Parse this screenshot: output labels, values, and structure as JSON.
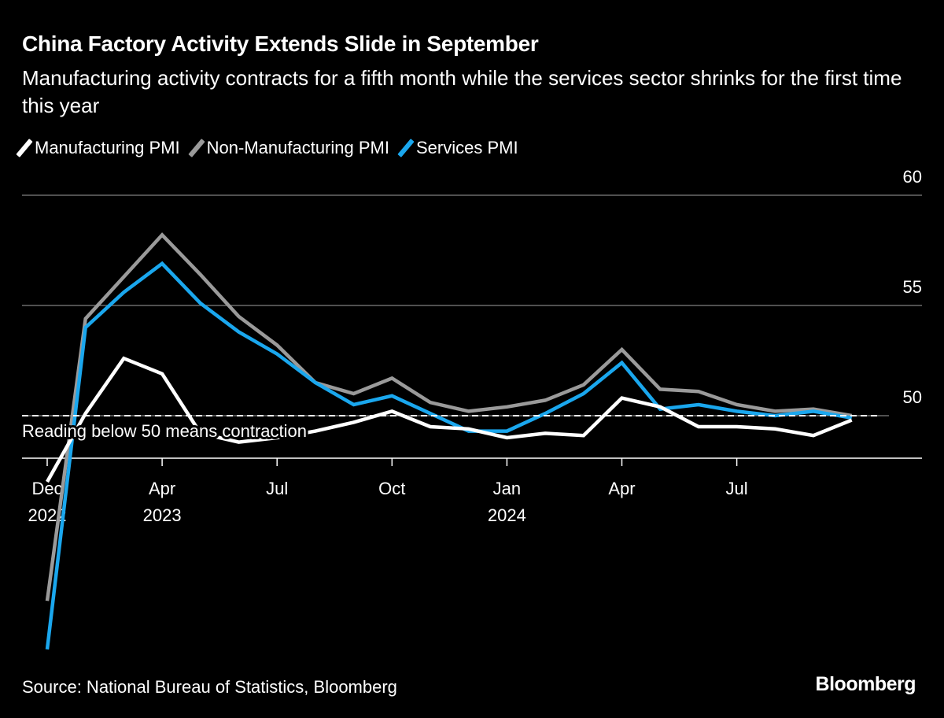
{
  "header": {
    "title": "China Factory Activity Extends Slide in September",
    "subtitle": "Manufacturing activity contracts for a fifth month while the services sector shrinks for the first time this year"
  },
  "footer": {
    "source": "Source: National Bureau of Statistics, Bloomberg",
    "logo": "Bloomberg"
  },
  "chart_data": {
    "type": "line",
    "title": "China Factory Activity Extends Slide in September",
    "x": [
      "2022-12",
      "2023-01",
      "2023-02",
      "2023-03",
      "2023-04",
      "2023-05",
      "2023-06",
      "2023-07",
      "2023-08",
      "2023-09",
      "2023-10",
      "2023-11",
      "2023-12",
      "2024-01",
      "2024-02",
      "2024-03",
      "2024-04",
      "2024-05",
      "2024-06",
      "2024-07",
      "2024-08",
      "2024-09"
    ],
    "series": [
      {
        "name": "Manufacturing PMI",
        "color": "#ffffff",
        "values": [
          47.0,
          50.1,
          52.6,
          51.9,
          49.2,
          48.8,
          49.0,
          49.3,
          49.7,
          50.2,
          49.5,
          49.4,
          49.0,
          49.2,
          49.1,
          50.8,
          50.4,
          49.5,
          49.5,
          49.4,
          49.1,
          49.8
        ]
      },
      {
        "name": "Non-Manufacturing PMI",
        "color": "#9a9a9a",
        "values": [
          41.6,
          54.4,
          56.3,
          58.2,
          56.4,
          54.5,
          53.2,
          51.5,
          51.0,
          51.7,
          50.6,
          50.2,
          50.4,
          50.7,
          51.4,
          53.0,
          51.2,
          51.1,
          50.5,
          50.2,
          50.3,
          50.0
        ]
      },
      {
        "name": "Services PMI",
        "color": "#1aa7ee",
        "values": [
          39.4,
          54.0,
          55.6,
          56.9,
          55.1,
          53.8,
          52.8,
          51.5,
          50.5,
          50.9,
          50.1,
          49.3,
          49.3,
          50.1,
          51.0,
          52.4,
          50.3,
          50.5,
          50.2,
          50.0,
          50.2,
          49.9
        ]
      }
    ],
    "x_ticks": [
      {
        "label": "Dec",
        "sub": "2022",
        "month": "2022-12"
      },
      {
        "label": "Apr",
        "sub": "2023",
        "month": "2023-04"
      },
      {
        "label": "Jul",
        "sub": "",
        "month": "2023-07"
      },
      {
        "label": "Oct",
        "sub": "",
        "month": "2023-10"
      },
      {
        "label": "Jan",
        "sub": "2024",
        "month": "2024-01"
      },
      {
        "label": "Apr",
        "sub": "",
        "month": "2024-04"
      },
      {
        "label": "Jul",
        "sub": "",
        "month": "2024-07"
      }
    ],
    "y_ticks": [
      "60",
      "55",
      "50"
    ],
    "ylim": [
      48,
      60
    ],
    "y_axis_side": "right",
    "grid": true,
    "legend_position": "top-left",
    "reference_line": {
      "value": 50,
      "label": "Reading below 50 means contraction"
    }
  }
}
